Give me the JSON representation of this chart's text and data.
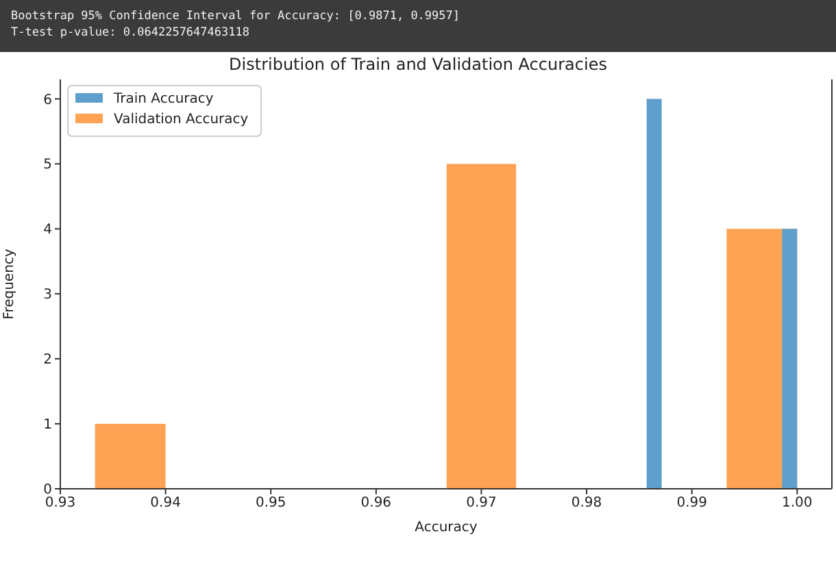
{
  "chart_data": {
    "type": "histogram",
    "title": "Distribution of Train and Validation Accuracies",
    "xlabel": "Accuracy",
    "ylabel": "Frequency",
    "annotations": [
      "Bootstrap 95% Confidence Interval for Accuracy: [0.9871, 0.9957]",
      "T-test p-value: 0.0642257647463118"
    ],
    "bins": [
      0.9333,
      0.94,
      0.9667,
      0.9733,
      0.9933,
      1.0
    ],
    "series": [
      {
        "name": "Train Accuracy",
        "color": "#5f9fcd",
        "bins": [
          0.9857,
          0.98713,
          0.99857,
          1.0
        ],
        "values": [
          6,
          0,
          4
        ]
      },
      {
        "name": "Validation Accuracy",
        "color": "#fea353",
        "values": [
          1,
          0,
          5,
          0,
          4
        ]
      }
    ],
    "xlim": [
      0.93,
      1.0033
    ],
    "xticks": [
      {
        "value": 0.93,
        "label": "0.93"
      },
      {
        "value": 0.94,
        "label": "0.94"
      },
      {
        "value": 0.95,
        "label": "0.95"
      },
      {
        "value": 0.96,
        "label": "0.96"
      },
      {
        "value": 0.97,
        "label": "0.97"
      },
      {
        "value": 0.98,
        "label": "0.98"
      },
      {
        "value": 0.99,
        "label": "0.99"
      },
      {
        "value": 1.0,
        "label": "1.00"
      }
    ],
    "ylim": [
      0,
      6.3
    ],
    "yticks": [
      0,
      1,
      2,
      3,
      4,
      5,
      6
    ],
    "grid": false,
    "legend": "top left"
  }
}
